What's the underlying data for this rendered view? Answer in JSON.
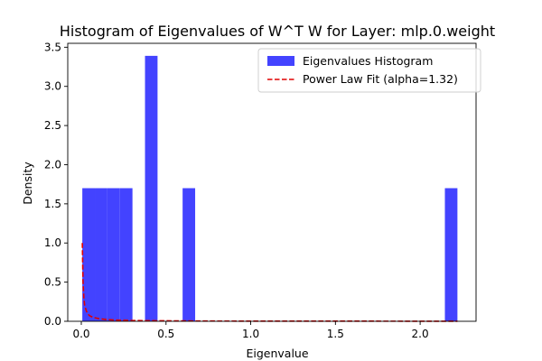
{
  "chart_data": {
    "type": "bar",
    "title": "Histogram of Eigenvalues of W^T W for Layer: mlp.0.weight",
    "xlabel": "Eigenvalue",
    "ylabel": "Density",
    "xlim": [
      -0.08,
      2.33
    ],
    "ylim": [
      0,
      3.55
    ],
    "xticks": [
      0.0,
      0.5,
      1.0,
      1.5,
      2.0
    ],
    "xtick_labels": [
      "0.0",
      "0.5",
      "1.0",
      "1.5",
      "2.0"
    ],
    "yticks": [
      0.0,
      0.5,
      1.0,
      1.5,
      2.0,
      2.5,
      3.0,
      3.5
    ],
    "ytick_labels": [
      "0.0",
      "0.5",
      "1.0",
      "1.5",
      "2.0",
      "2.5",
      "3.0",
      "3.5"
    ],
    "grid": false,
    "legend_position": "top-right",
    "series": [
      {
        "name": "Eigenvalues Histogram",
        "kind": "histogram",
        "color": "#4343ff",
        "bins": [
          {
            "x0": 0.006,
            "x1": 0.08,
            "density": 1.7
          },
          {
            "x0": 0.08,
            "x1": 0.154,
            "density": 1.7
          },
          {
            "x0": 0.154,
            "x1": 0.228,
            "density": 1.7
          },
          {
            "x0": 0.228,
            "x1": 0.302,
            "density": 1.7
          },
          {
            "x0": 0.376,
            "x1": 0.45,
            "density": 3.39
          },
          {
            "x0": 0.598,
            "x1": 0.672,
            "density": 1.7
          },
          {
            "x0": 2.146,
            "x1": 2.22,
            "density": 1.7
          }
        ]
      },
      {
        "name": "Power Law Fit (alpha=1.32)",
        "kind": "line",
        "style": "dashed",
        "color": "#e00000",
        "x": [
          0.006,
          0.01,
          0.015,
          0.02,
          0.03,
          0.04,
          0.05,
          0.07,
          0.1,
          0.15,
          0.2,
          0.3,
          0.5,
          0.8,
          1.2,
          1.6,
          2.0,
          2.22
        ],
        "y": [
          1.0,
          0.51,
          0.3,
          0.2,
          0.13,
          0.09,
          0.07,
          0.05,
          0.035,
          0.022,
          0.016,
          0.01,
          0.006,
          0.003,
          0.002,
          0.002,
          0.001,
          0.001
        ]
      }
    ]
  }
}
